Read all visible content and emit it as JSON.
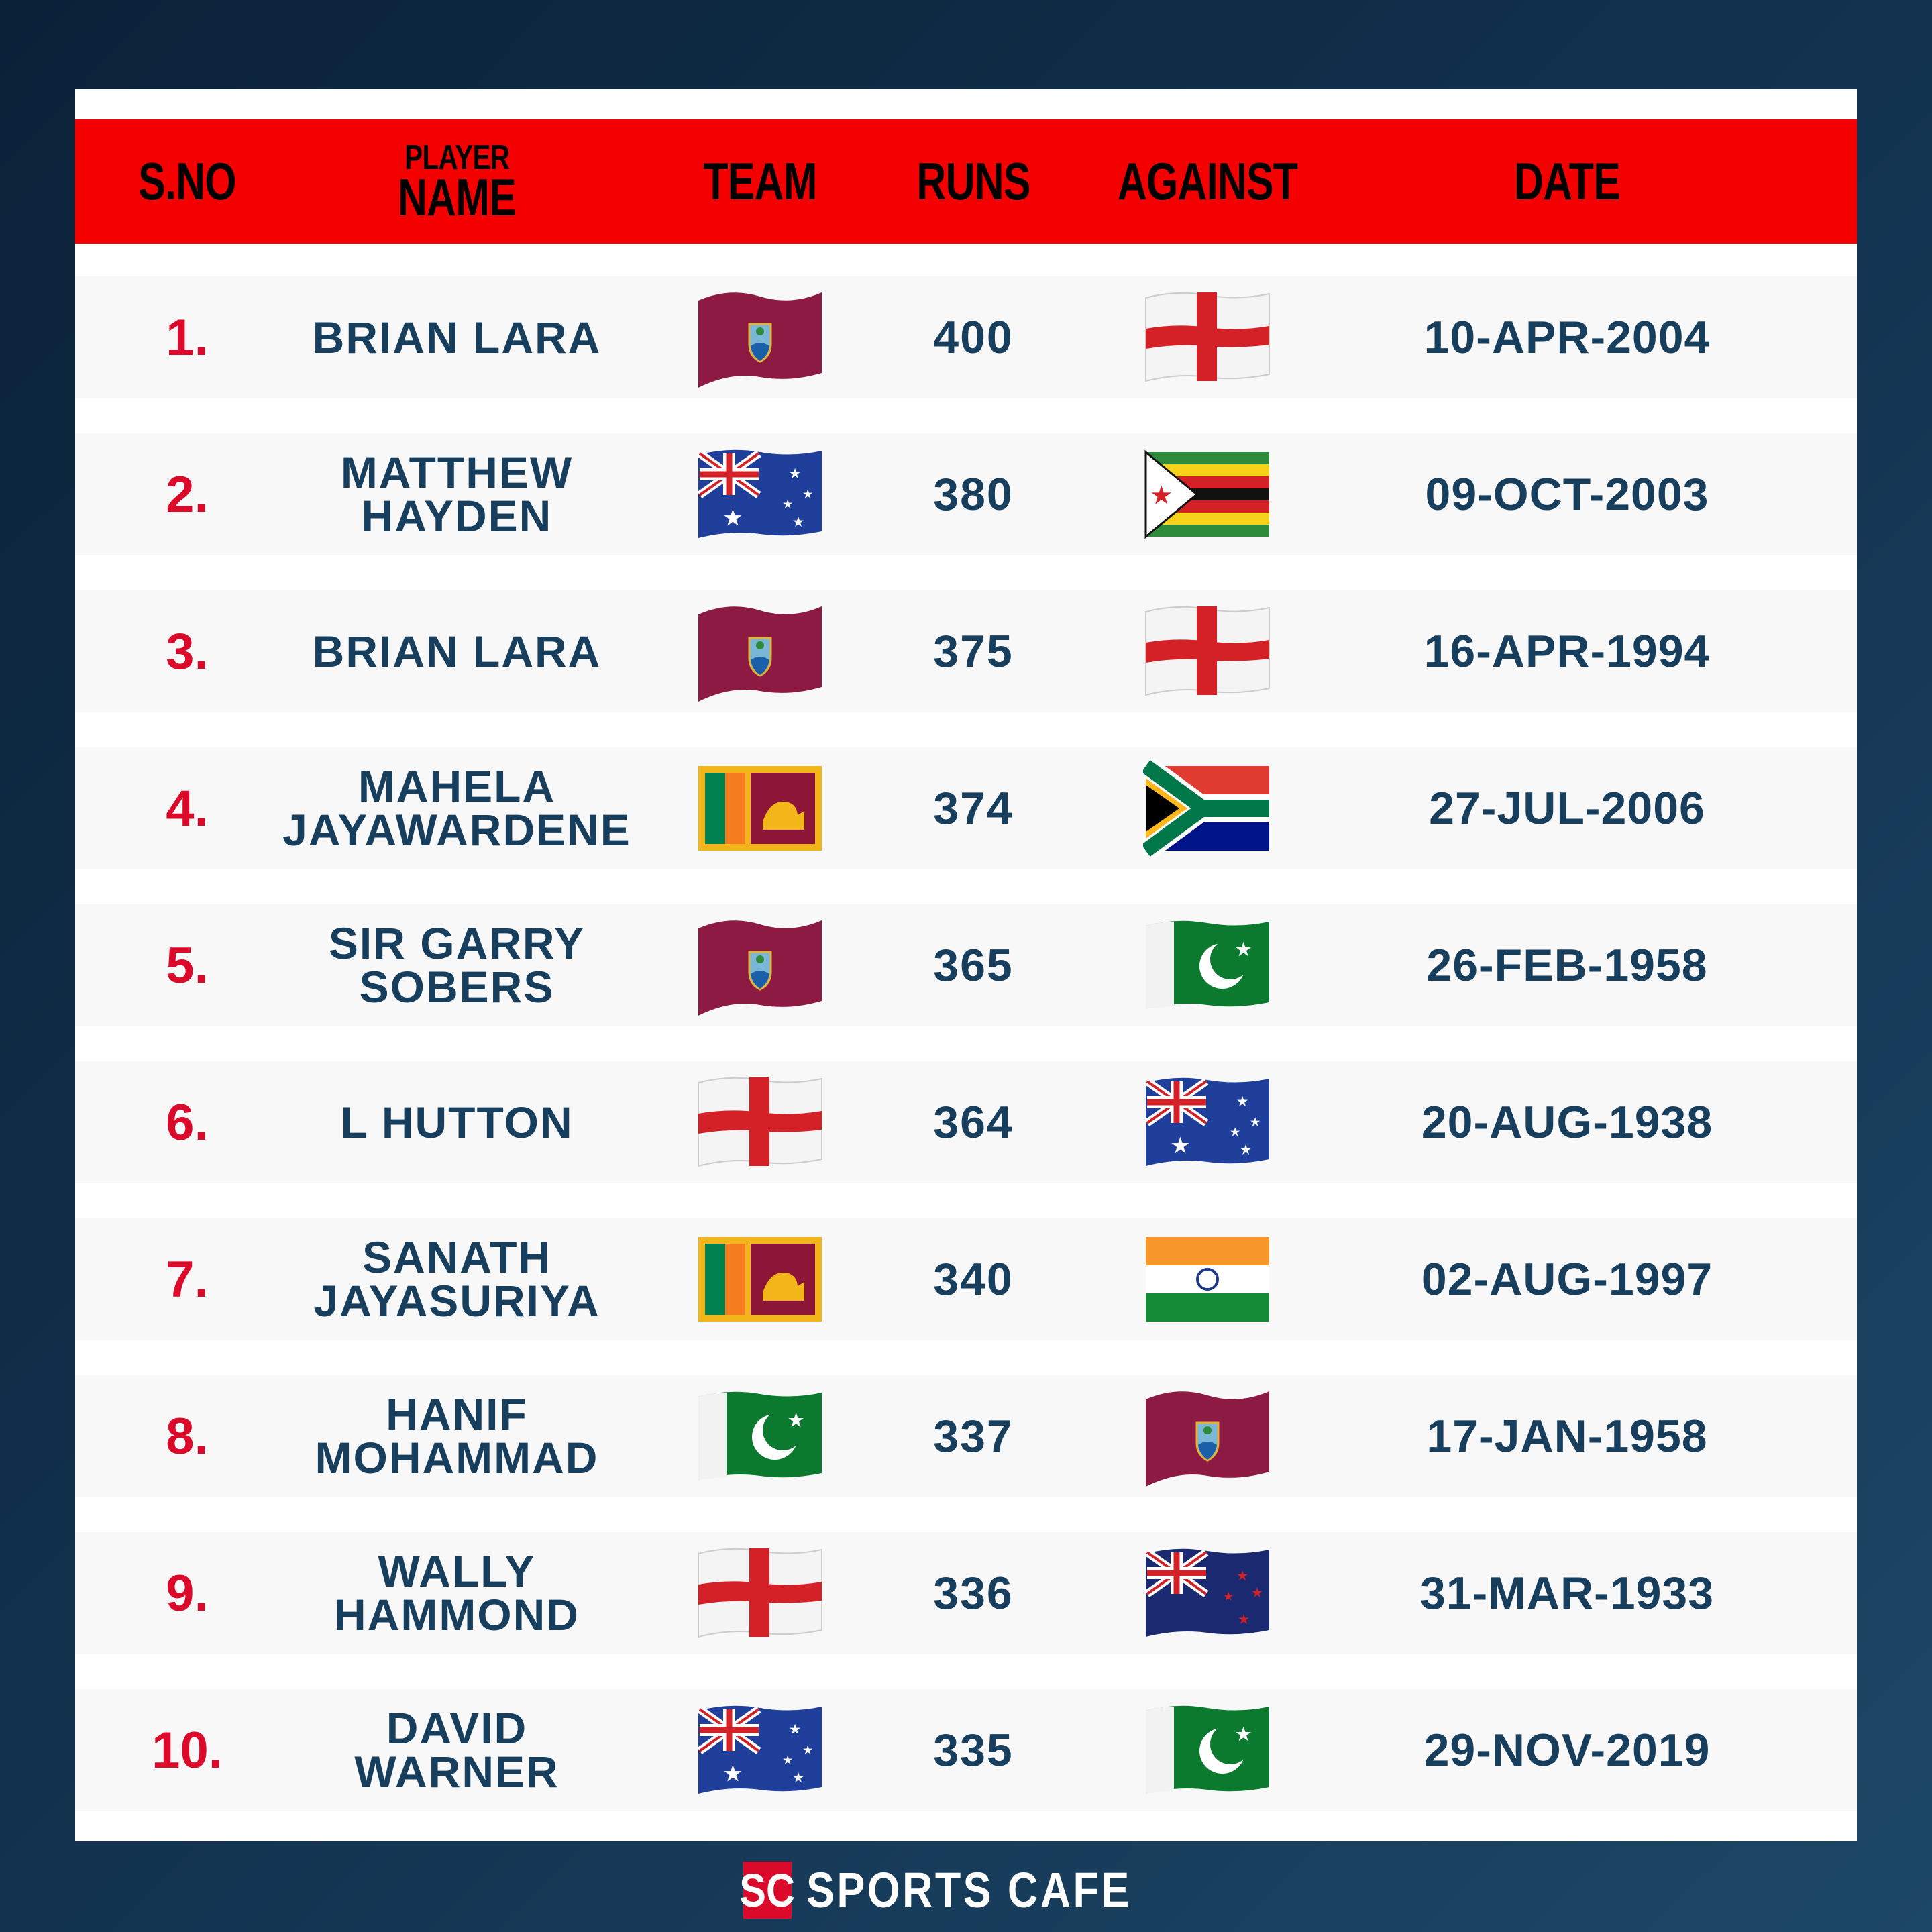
{
  "header": {
    "sno": "S.NO",
    "player_top": "PLAYER",
    "player_bottom": "NAME",
    "team": "TEAM",
    "runs": "RUNS",
    "against": "AGAINST",
    "date": "DATE"
  },
  "rows": [
    {
      "sno": "1.",
      "name": [
        "BRIAN LARA"
      ],
      "team": "west-indies-flag",
      "runs": "400",
      "against": "england-flag",
      "date": "10-APR-2004"
    },
    {
      "sno": "2.",
      "name": [
        "MATTHEW",
        "HAYDEN"
      ],
      "team": "australia-flag",
      "runs": "380",
      "against": "zimbabwe-flag",
      "date": "09-OCT-2003"
    },
    {
      "sno": "3.",
      "name": [
        "BRIAN LARA"
      ],
      "team": "west-indies-flag",
      "runs": "375",
      "against": "england-flag",
      "date": "16-APR-1994"
    },
    {
      "sno": "4.",
      "name": [
        "MAHELA",
        "JAYAWARDENE"
      ],
      "team": "sri-lanka-flag",
      "runs": "374",
      "against": "south-africa-flag",
      "date": "27-JUL-2006"
    },
    {
      "sno": "5.",
      "name": [
        "SIR GARRY",
        "SOBERS"
      ],
      "team": "west-indies-flag",
      "runs": "365",
      "against": "pakistan-flag",
      "date": "26-FEB-1958"
    },
    {
      "sno": "6.",
      "name": [
        "L HUTTON"
      ],
      "team": "england-flag",
      "runs": "364",
      "against": "australia-flag",
      "date": "20-AUG-1938"
    },
    {
      "sno": "7.",
      "name": [
        "SANATH",
        "JAYASURIYA"
      ],
      "team": "sri-lanka-flag",
      "runs": "340",
      "against": "india-flag",
      "date": "02-AUG-1997"
    },
    {
      "sno": "8.",
      "name": [
        "HANIF",
        "MOHAMMAD"
      ],
      "team": "pakistan-flag",
      "runs": "337",
      "against": "west-indies-flag",
      "date": "17-JAN-1958"
    },
    {
      "sno": "9.",
      "name": [
        "WALLY",
        "HAMMOND"
      ],
      "team": "england-flag",
      "runs": "336",
      "against": "new-zealand-flag",
      "date": "31-MAR-1933"
    },
    {
      "sno": "10.",
      "name": [
        "DAVID",
        "WARNER"
      ],
      "team": "australia-flag",
      "runs": "335",
      "against": "pakistan-flag",
      "date": "29-NOV-2019"
    }
  ],
  "footer": {
    "logo_mark": "SC",
    "brand": "SPORTS CAFE"
  },
  "colors": {
    "header_bg": "#f40000",
    "rank": "#dc0a2a",
    "text": "#173e5c",
    "background": "#12324f"
  }
}
